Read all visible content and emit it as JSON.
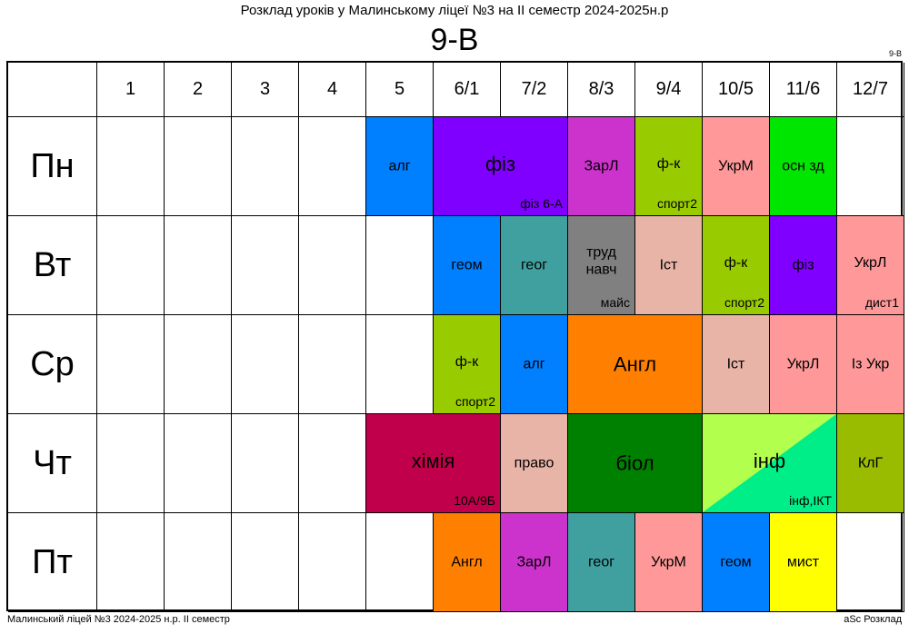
{
  "title": "Розклад уроків у Малинському ліцеї №3 на ІІ семестр 2024-2025н.р",
  "class_name": "9-В",
  "corner_tag": "9-В",
  "periods": [
    "1",
    "2",
    "3",
    "4",
    "5",
    "6/1",
    "7/2",
    "8/3",
    "9/4",
    "10/5",
    "11/6",
    "12/7"
  ],
  "days": [
    "Пн",
    "Вт",
    "Ср",
    "Чт",
    "Пт"
  ],
  "lessons": [
    {
      "day": 0,
      "start": 4,
      "span": 1,
      "subject": "алг",
      "room": "",
      "color": "#0080ff"
    },
    {
      "day": 0,
      "start": 5,
      "span": 2,
      "subject": "фіз",
      "room": "фіз 6-А",
      "color": "#8000ff",
      "big": true
    },
    {
      "day": 0,
      "start": 7,
      "span": 1,
      "subject": "ЗарЛ",
      "room": "",
      "color": "#cc33cc"
    },
    {
      "day": 0,
      "start": 8,
      "span": 1,
      "subject": "ф-к",
      "room": "спорт2",
      "color": "#99cc00"
    },
    {
      "day": 0,
      "start": 9,
      "span": 1,
      "subject": "УкрМ",
      "room": "",
      "color": "#ff9999"
    },
    {
      "day": 0,
      "start": 10,
      "span": 1,
      "subject": "осн зд",
      "room": "",
      "color": "#00e600"
    },
    {
      "day": 1,
      "start": 5,
      "span": 1,
      "subject": "геом",
      "room": "",
      "color": "#0080ff"
    },
    {
      "day": 1,
      "start": 6,
      "span": 1,
      "subject": "геог",
      "room": "",
      "color": "#40a0a0"
    },
    {
      "day": 1,
      "start": 7,
      "span": 1,
      "subject": "труд\nнавч",
      "room": "майс",
      "color": "#808080"
    },
    {
      "day": 1,
      "start": 8,
      "span": 1,
      "subject": "Іст",
      "room": "",
      "color": "#e8b4a8"
    },
    {
      "day": 1,
      "start": 9,
      "span": 1,
      "subject": "ф-к",
      "room": "спорт2",
      "color": "#99cc00"
    },
    {
      "day": 1,
      "start": 10,
      "span": 1,
      "subject": "фіз",
      "room": "",
      "color": "#8000ff"
    },
    {
      "day": 1,
      "start": 11,
      "span": 1,
      "subject": "УкрЛ",
      "room": "дист1",
      "color": "#ff9999"
    },
    {
      "day": 2,
      "start": 5,
      "span": 1,
      "subject": "ф-к",
      "room": "спорт2",
      "color": "#99cc00"
    },
    {
      "day": 2,
      "start": 6,
      "span": 1,
      "subject": "алг",
      "room": "",
      "color": "#0080ff"
    },
    {
      "day": 2,
      "start": 7,
      "span": 2,
      "subject": "Англ",
      "room": "",
      "color": "#ff8000",
      "big": true
    },
    {
      "day": 2,
      "start": 9,
      "span": 1,
      "subject": "Іст",
      "room": "",
      "color": "#e8b4a8"
    },
    {
      "day": 2,
      "start": 10,
      "span": 1,
      "subject": "УкрЛ",
      "room": "",
      "color": "#ff9999"
    },
    {
      "day": 2,
      "start": 11,
      "span": 1,
      "subject": "Із Укр",
      "room": "",
      "color": "#ff9999"
    },
    {
      "day": 3,
      "start": 4,
      "span": 2,
      "subject": "хімія",
      "room": "10А/9Б",
      "color": "#c0004b",
      "big": true
    },
    {
      "day": 3,
      "start": 6,
      "span": 1,
      "subject": "право",
      "room": "",
      "color": "#e8b4a8"
    },
    {
      "day": 3,
      "start": 7,
      "span": 2,
      "subject": "біол",
      "room": "",
      "color": "#008000",
      "big": true
    },
    {
      "day": 3,
      "start": 9,
      "span": 2,
      "subject": "інф",
      "room": "інф,ІКТ",
      "color": "#b3ff4d",
      "color2": "#00ee88",
      "big": true
    },
    {
      "day": 3,
      "start": 11,
      "span": 1,
      "subject": "КлГ",
      "room": "",
      "color": "#99bb00"
    },
    {
      "day": 4,
      "start": 5,
      "span": 1,
      "subject": "Англ",
      "room": "",
      "color": "#ff8000"
    },
    {
      "day": 4,
      "start": 6,
      "span": 1,
      "subject": "ЗарЛ",
      "room": "",
      "color": "#cc33cc"
    },
    {
      "day": 4,
      "start": 7,
      "span": 1,
      "subject": "геог",
      "room": "",
      "color": "#40a0a0"
    },
    {
      "day": 4,
      "start": 8,
      "span": 1,
      "subject": "УкрМ",
      "room": "",
      "color": "#ff9999"
    },
    {
      "day": 4,
      "start": 9,
      "span": 1,
      "subject": "геом",
      "room": "",
      "color": "#0080ff"
    },
    {
      "day": 4,
      "start": 10,
      "span": 1,
      "subject": "мист",
      "room": "",
      "color": "#ffff00"
    }
  ],
  "footer_left": "Малинський ліцей №3  2024-2025 н.р. ІІ семестр",
  "footer_right": "aSc Розклад"
}
